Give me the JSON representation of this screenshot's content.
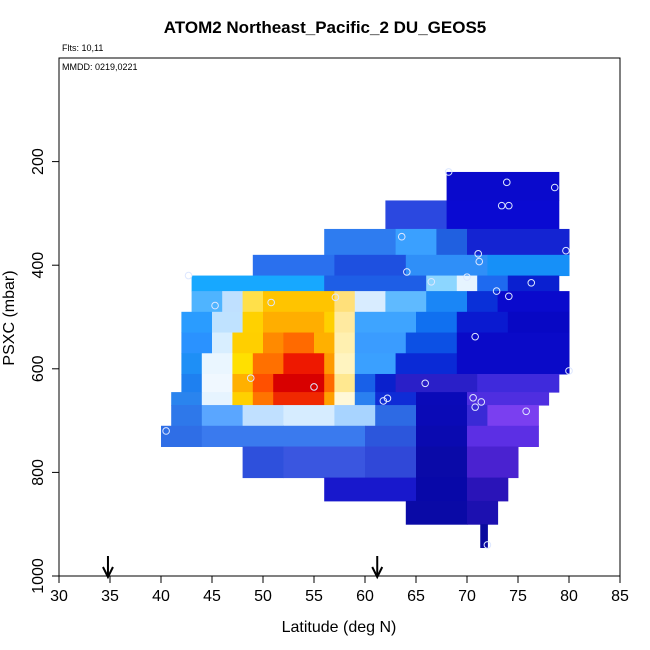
{
  "chart_data": {
    "type": "heatmap",
    "title": "ATOM2 Northeast_Pacific_2 DU_GEOS5",
    "flights_note": "Flts: 10,11",
    "date_note": "MMDD: 0219,0221",
    "xlabel": "Latitude (deg N)",
    "ylabel": "PSXC (mbar)",
    "xlim": [
      30,
      85
    ],
    "ylim": [
      1000,
      0
    ],
    "x_ticks": [
      "30",
      "35",
      "40",
      "45",
      "50",
      "55",
      "60",
      "65",
      "70",
      "75",
      "80",
      "85"
    ],
    "y_ticks": [
      "200",
      "400",
      "600",
      "800",
      "1000"
    ],
    "y_tick_values": [
      200,
      400,
      600,
      800,
      1000
    ],
    "grid": false,
    "rows": [
      {
        "p_top": 220,
        "p_bot": 275,
        "segments": [
          {
            "x0": 68,
            "x1": 79,
            "c": "#0a0acc"
          }
        ]
      },
      {
        "p_top": 275,
        "p_bot": 330,
        "segments": [
          {
            "x0": 62,
            "x1": 68,
            "c": "#2b48e0"
          },
          {
            "x0": 68,
            "x1": 79,
            "c": "#0a0ad2"
          }
        ]
      },
      {
        "p_top": 330,
        "p_bot": 380,
        "segments": [
          {
            "x0": 56,
            "x1": 63,
            "c": "#2e7cf0"
          },
          {
            "x0": 63,
            "x1": 67,
            "c": "#3aa0ff"
          },
          {
            "x0": 67,
            "x1": 70,
            "c": "#2060e0"
          },
          {
            "x0": 70,
            "x1": 80,
            "c": "#1424d2"
          }
        ]
      },
      {
        "p_top": 380,
        "p_bot": 420,
        "segments": [
          {
            "x0": 49,
            "x1": 57,
            "c": "#2a70ee"
          },
          {
            "x0": 57,
            "x1": 64,
            "c": "#1e50e0"
          },
          {
            "x0": 64,
            "x1": 72,
            "c": "#2f8ff8"
          },
          {
            "x0": 72,
            "x1": 80,
            "c": "#1690f8"
          }
        ]
      },
      {
        "p_top": 420,
        "p_bot": 450,
        "segments": [
          {
            "x0": 43,
            "x1": 56,
            "c": "#17a8ff"
          },
          {
            "x0": 56,
            "x1": 66,
            "c": "#1e5ee6"
          },
          {
            "x0": 66,
            "x1": 69,
            "c": "#8cd6ff"
          },
          {
            "x0": 69,
            "x1": 71,
            "c": "#e6f4ff"
          },
          {
            "x0": 71,
            "x1": 74,
            "c": "#1e6af0"
          },
          {
            "x0": 74,
            "x1": 79,
            "c": "#0a20d0"
          }
        ]
      },
      {
        "p_top": 450,
        "p_bot": 490,
        "segments": [
          {
            "x0": 43,
            "x1": 46,
            "c": "#4fb4ff"
          },
          {
            "x0": 46,
            "x1": 48,
            "c": "#bfe0ff"
          },
          {
            "x0": 48,
            "x1": 50,
            "c": "#ffe04a"
          },
          {
            "x0": 50,
            "x1": 57,
            "c": "#ffc400"
          },
          {
            "x0": 57,
            "x1": 59,
            "c": "#ffe07a"
          },
          {
            "x0": 59,
            "x1": 62,
            "c": "#d8ecff"
          },
          {
            "x0": 62,
            "x1": 66,
            "c": "#5fbaff"
          },
          {
            "x0": 66,
            "x1": 70,
            "c": "#1a86f6"
          },
          {
            "x0": 70,
            "x1": 73,
            "c": "#0a30d8"
          },
          {
            "x0": 73,
            "x1": 80,
            "c": "#0a0acc"
          }
        ]
      },
      {
        "p_top": 490,
        "p_bot": 530,
        "segments": [
          {
            "x0": 42,
            "x1": 45,
            "c": "#2a9cff"
          },
          {
            "x0": 45,
            "x1": 48,
            "c": "#bfe2ff"
          },
          {
            "x0": 48,
            "x1": 50,
            "c": "#ffd100"
          },
          {
            "x0": 50,
            "x1": 56,
            "c": "#ffae00"
          },
          {
            "x0": 56,
            "x1": 57,
            "c": "#ffd000"
          },
          {
            "x0": 57,
            "x1": 59,
            "c": "#ffeaa0"
          },
          {
            "x0": 59,
            "x1": 65,
            "c": "#3ea4ff"
          },
          {
            "x0": 65,
            "x1": 69,
            "c": "#1070f0"
          },
          {
            "x0": 69,
            "x1": 74,
            "c": "#0a1ad0"
          },
          {
            "x0": 74,
            "x1": 80,
            "c": "#0808c4"
          }
        ]
      },
      {
        "p_top": 530,
        "p_bot": 570,
        "segments": [
          {
            "x0": 42,
            "x1": 45,
            "c": "#2a92ff"
          },
          {
            "x0": 45,
            "x1": 47,
            "c": "#d8eeff"
          },
          {
            "x0": 47,
            "x1": 50,
            "c": "#ffcf00"
          },
          {
            "x0": 50,
            "x1": 52,
            "c": "#ff8a00"
          },
          {
            "x0": 52,
            "x1": 55,
            "c": "#ff6a00"
          },
          {
            "x0": 55,
            "x1": 57,
            "c": "#ffb000"
          },
          {
            "x0": 57,
            "x1": 59,
            "c": "#fff0b0"
          },
          {
            "x0": 59,
            "x1": 64,
            "c": "#3a9cff"
          },
          {
            "x0": 64,
            "x1": 69,
            "c": "#0c50e4"
          },
          {
            "x0": 69,
            "x1": 80,
            "c": "#0a0ac8"
          }
        ]
      },
      {
        "p_top": 570,
        "p_bot": 610,
        "segments": [
          {
            "x0": 42,
            "x1": 44,
            "c": "#1e8ff6"
          },
          {
            "x0": 44,
            "x1": 47,
            "c": "#eaf6ff"
          },
          {
            "x0": 47,
            "x1": 49,
            "c": "#ffe000"
          },
          {
            "x0": 49,
            "x1": 52,
            "c": "#ff7000"
          },
          {
            "x0": 52,
            "x1": 56,
            "c": "#ee1800"
          },
          {
            "x0": 56,
            "x1": 57,
            "c": "#ff9a00"
          },
          {
            "x0": 57,
            "x1": 59,
            "c": "#fff4c0"
          },
          {
            "x0": 59,
            "x1": 63,
            "c": "#3aa0ff"
          },
          {
            "x0": 63,
            "x1": 69,
            "c": "#0a2ad6"
          },
          {
            "x0": 69,
            "x1": 80,
            "c": "#0a0ac8"
          }
        ]
      },
      {
        "p_top": 610,
        "p_bot": 645,
        "segments": [
          {
            "x0": 42,
            "x1": 44,
            "c": "#1e80f0"
          },
          {
            "x0": 44,
            "x1": 47,
            "c": "#f0f8ff"
          },
          {
            "x0": 47,
            "x1": 49,
            "c": "#ffb000"
          },
          {
            "x0": 49,
            "x1": 51,
            "c": "#ff5000"
          },
          {
            "x0": 51,
            "x1": 56,
            "c": "#d80000"
          },
          {
            "x0": 56,
            "x1": 57,
            "c": "#ff6a00"
          },
          {
            "x0": 57,
            "x1": 59,
            "c": "#ffe890"
          },
          {
            "x0": 59,
            "x1": 61,
            "c": "#1860e8"
          },
          {
            "x0": 61,
            "x1": 63,
            "c": "#0a20cc"
          },
          {
            "x0": 63,
            "x1": 71,
            "c": "#2a1fc8"
          },
          {
            "x0": 71,
            "x1": 79,
            "c": "#3f2adc"
          }
        ]
      },
      {
        "p_top": 645,
        "p_bot": 670,
        "segments": [
          {
            "x0": 41,
            "x1": 44,
            "c": "#2a84ee"
          },
          {
            "x0": 44,
            "x1": 47,
            "c": "#e6f4ff"
          },
          {
            "x0": 47,
            "x1": 49,
            "c": "#ffd000"
          },
          {
            "x0": 49,
            "x1": 51,
            "c": "#ff7400"
          },
          {
            "x0": 51,
            "x1": 56,
            "c": "#f02800"
          },
          {
            "x0": 56,
            "x1": 57,
            "c": "#ffa000"
          },
          {
            "x0": 57,
            "x1": 59,
            "c": "#fff8d8"
          },
          {
            "x0": 59,
            "x1": 61,
            "c": "#2a80f0"
          },
          {
            "x0": 61,
            "x1": 65,
            "c": "#0f2cd6"
          },
          {
            "x0": 65,
            "x1": 70,
            "c": "#0a0ab8"
          },
          {
            "x0": 70,
            "x1": 78,
            "c": "#4f2ee0"
          }
        ]
      },
      {
        "p_top": 670,
        "p_bot": 710,
        "segments": [
          {
            "x0": 41,
            "x1": 44,
            "c": "#2e78ea"
          },
          {
            "x0": 44,
            "x1": 48,
            "c": "#5aa6ff"
          },
          {
            "x0": 48,
            "x1": 52,
            "c": "#c0e0ff"
          },
          {
            "x0": 52,
            "x1": 57,
            "c": "#d6ecff"
          },
          {
            "x0": 57,
            "x1": 61,
            "c": "#a8d4ff"
          },
          {
            "x0": 61,
            "x1": 65,
            "c": "#2d6ae4"
          },
          {
            "x0": 65,
            "x1": 70,
            "c": "#0a0ab6"
          },
          {
            "x0": 70,
            "x1": 72,
            "c": "#3a2ad6"
          },
          {
            "x0": 72,
            "x1": 77,
            "c": "#7a3ff0"
          }
        ]
      },
      {
        "p_top": 710,
        "p_bot": 750,
        "segments": [
          {
            "x0": 40,
            "x1": 44,
            "c": "#2f6ee6"
          },
          {
            "x0": 44,
            "x1": 52,
            "c": "#3a7aee"
          },
          {
            "x0": 52,
            "x1": 60,
            "c": "#3a7aee"
          },
          {
            "x0": 60,
            "x1": 65,
            "c": "#2c56dc"
          },
          {
            "x0": 65,
            "x1": 70,
            "c": "#0a0ab0"
          },
          {
            "x0": 70,
            "x1": 77,
            "c": "#5c2fe4"
          }
        ]
      },
      {
        "p_top": 750,
        "p_bot": 810,
        "segments": [
          {
            "x0": 48,
            "x1": 52,
            "c": "#2e50dc"
          },
          {
            "x0": 52,
            "x1": 60,
            "c": "#3a56e0"
          },
          {
            "x0": 60,
            "x1": 65,
            "c": "#3048d8"
          },
          {
            "x0": 65,
            "x1": 70,
            "c": "#0a0aa8"
          },
          {
            "x0": 70,
            "x1": 75,
            "c": "#4a22d0"
          }
        ]
      },
      {
        "p_top": 810,
        "p_bot": 855,
        "segments": [
          {
            "x0": 56,
            "x1": 65,
            "c": "#1818cc"
          },
          {
            "x0": 65,
            "x1": 70,
            "c": "#0808a8"
          },
          {
            "x0": 70,
            "x1": 74,
            "c": "#2a14b8"
          }
        ]
      },
      {
        "p_top": 855,
        "p_bot": 900,
        "segments": [
          {
            "x0": 64,
            "x1": 70,
            "c": "#0a0aa6"
          },
          {
            "x0": 70,
            "x1": 73,
            "c": "#1c10b0"
          }
        ]
      },
      {
        "p_top": 900,
        "p_bot": 945,
        "segments": [
          {
            "x0": 71.3,
            "x1": 72,
            "c": "#0a0a9e"
          }
        ]
      }
    ],
    "points": [
      {
        "x": 68.2,
        "y": 220
      },
      {
        "x": 73.9,
        "y": 240
      },
      {
        "x": 78.6,
        "y": 250
      },
      {
        "x": 73.4,
        "y": 285
      },
      {
        "x": 74.1,
        "y": 285
      },
      {
        "x": 63.6,
        "y": 345
      },
      {
        "x": 79.7,
        "y": 372
      },
      {
        "x": 71.1,
        "y": 378
      },
      {
        "x": 71.2,
        "y": 393
      },
      {
        "x": 64.1,
        "y": 413
      },
      {
        "x": 42.7,
        "y": 420
      },
      {
        "x": 66.5,
        "y": 432
      },
      {
        "x": 70.0,
        "y": 423
      },
      {
        "x": 76.3,
        "y": 434
      },
      {
        "x": 72.9,
        "y": 450
      },
      {
        "x": 74.1,
        "y": 460
      },
      {
        "x": 57.1,
        "y": 462
      },
      {
        "x": 45.3,
        "y": 478
      },
      {
        "x": 50.8,
        "y": 472
      },
      {
        "x": 70.8,
        "y": 538
      },
      {
        "x": 80.0,
        "y": 604
      },
      {
        "x": 48.8,
        "y": 618
      },
      {
        "x": 65.9,
        "y": 628
      },
      {
        "x": 55.0,
        "y": 635
      },
      {
        "x": 62.2,
        "y": 657
      },
      {
        "x": 61.8,
        "y": 662
      },
      {
        "x": 70.6,
        "y": 656
      },
      {
        "x": 71.4,
        "y": 664
      },
      {
        "x": 70.8,
        "y": 674
      },
      {
        "x": 75.8,
        "y": 682
      },
      {
        "x": 40.5,
        "y": 720
      },
      {
        "x": 72.0,
        "y": 940
      }
    ],
    "flight_markers_lat": [
      34.8,
      61.2
    ],
    "point_stroke": "#dde7ff"
  }
}
